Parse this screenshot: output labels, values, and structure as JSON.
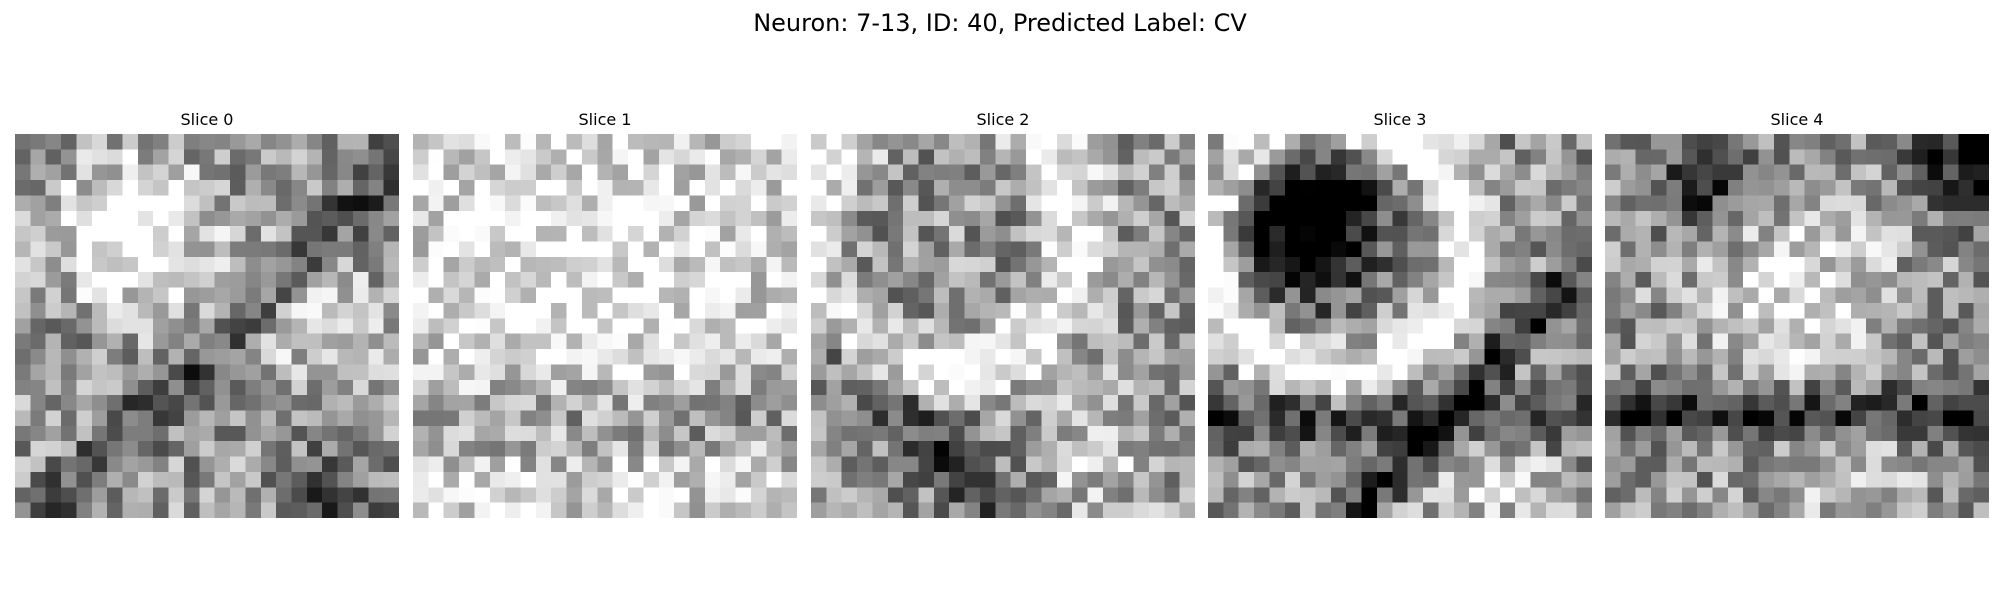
{
  "figure": {
    "title": "Neuron: 7-13, ID: 40, Predicted Label: CV",
    "colormap": "grayscale",
    "grid_size": 25
  },
  "slices": [
    {
      "title": "Slice 0",
      "seed": 11
    },
    {
      "title": "Slice 1",
      "seed": 23
    },
    {
      "title": "Slice 2",
      "seed": 37
    },
    {
      "title": "Slice 3",
      "seed": 41
    },
    {
      "title": "Slice 4",
      "seed": 53
    }
  ]
}
